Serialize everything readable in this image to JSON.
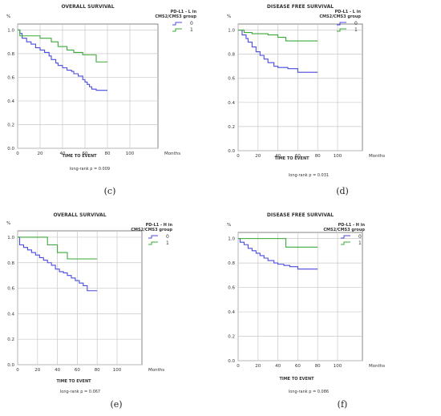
{
  "chart_data": [
    {
      "id": "top-left",
      "type": "line",
      "title": "OVERALL SURVIVAL",
      "ylabel": "%",
      "xlabel": "TIME TO EVENT",
      "xunit": "Months",
      "xticks": [
        0,
        20,
        40,
        60,
        80,
        100
      ],
      "yticks": [
        0.0,
        0.2,
        0.4,
        0.6,
        0.8,
        1.0
      ],
      "xlim": [
        0,
        100
      ],
      "ylim": [
        0,
        1.05
      ],
      "legend_title": [
        "PD-L1 - L in",
        "CMS2/CMS3 group"
      ],
      "note": "long-rank p = 0.009",
      "caption": "",
      "series": [
        {
          "name": "0",
          "color": "#4a4adf",
          "x": [
            0,
            2,
            4,
            8,
            12,
            16,
            20,
            24,
            28,
            30,
            34,
            36,
            40,
            44,
            48,
            50,
            54,
            58,
            60,
            62,
            64,
            66,
            70,
            80
          ],
          "y": [
            1.0,
            0.97,
            0.93,
            0.9,
            0.88,
            0.85,
            0.83,
            0.81,
            0.78,
            0.75,
            0.72,
            0.7,
            0.68,
            0.66,
            0.65,
            0.63,
            0.61,
            0.58,
            0.56,
            0.54,
            0.52,
            0.5,
            0.49,
            0.49
          ]
        },
        {
          "name": "1",
          "color": "#3aaa3a",
          "x": [
            0,
            2,
            20,
            30,
            36,
            44,
            50,
            58,
            70,
            80
          ],
          "y": [
            1.0,
            0.95,
            0.93,
            0.9,
            0.86,
            0.83,
            0.81,
            0.79,
            0.73,
            0.73
          ]
        }
      ]
    },
    {
      "id": "top-right",
      "type": "line",
      "title": "DISEASE FREE SURVIVAL",
      "ylabel": "%",
      "xlabel": "TIME TO EVENT",
      "xunit": "Months",
      "xticks": [
        0,
        20,
        40,
        60,
        80,
        100
      ],
      "yticks": [
        0.0,
        0.2,
        0.4,
        0.6,
        0.8,
        1.0
      ],
      "xlim": [
        0,
        100
      ],
      "ylim": [
        0,
        1.05
      ],
      "legend_title": [
        "PD-L1 - L in",
        "CMS2/CMS3 group"
      ],
      "note": "long-rank p = 0.031",
      "caption": "",
      "series": [
        {
          "name": "0",
          "color": "#4a4adf",
          "x": [
            0,
            4,
            8,
            10,
            14,
            18,
            22,
            26,
            30,
            36,
            40,
            50,
            60,
            80
          ],
          "y": [
            1.0,
            0.96,
            0.93,
            0.9,
            0.86,
            0.82,
            0.79,
            0.76,
            0.73,
            0.7,
            0.69,
            0.68,
            0.65,
            0.65
          ]
        },
        {
          "name": "1",
          "color": "#3aaa3a",
          "x": [
            0,
            6,
            14,
            30,
            40,
            48,
            60,
            80
          ],
          "y": [
            1.0,
            0.98,
            0.97,
            0.96,
            0.94,
            0.91,
            0.91,
            0.91
          ]
        }
      ]
    },
    {
      "id": "bottom-left",
      "type": "line",
      "title": "OVERALL SURVIVAL",
      "ylabel": "%",
      "xlabel": "TIME TO EVENT",
      "xunit": "Months",
      "xticks": [
        0,
        20,
        40,
        60,
        80,
        100
      ],
      "yticks": [
        0.0,
        0.2,
        0.4,
        0.6,
        0.8,
        1.0
      ],
      "xlim": [
        0,
        100
      ],
      "ylim": [
        0,
        1.05
      ],
      "legend_title": [
        "PD-L1 - H in",
        "CMS2/CMS3 group"
      ],
      "note": "long-rank p = 0.067",
      "caption": "(e)",
      "series": [
        {
          "name": "0",
          "color": "#4a4adf",
          "x": [
            0,
            2,
            6,
            10,
            14,
            18,
            22,
            26,
            30,
            34,
            38,
            42,
            46,
            50,
            54,
            58,
            62,
            66,
            70,
            80
          ],
          "y": [
            1.0,
            0.94,
            0.92,
            0.9,
            0.88,
            0.86,
            0.84,
            0.82,
            0.8,
            0.78,
            0.75,
            0.73,
            0.72,
            0.7,
            0.68,
            0.66,
            0.64,
            0.62,
            0.58,
            0.58
          ]
        },
        {
          "name": "1",
          "color": "#3aaa3a",
          "x": [
            0,
            30,
            40,
            50,
            80
          ],
          "y": [
            1.0,
            0.94,
            0.88,
            0.83,
            0.83
          ]
        }
      ]
    },
    {
      "id": "bottom-right",
      "type": "line",
      "title": "DISEASE FREE SURVIVAL",
      "ylabel": "%",
      "xlabel": "TIME TO EVENT",
      "xunit": "Months",
      "xticks": [
        0,
        20,
        40,
        60,
        80,
        100
      ],
      "yticks": [
        0.0,
        0.2,
        0.4,
        0.6,
        0.8,
        1.0
      ],
      "xlim": [
        0,
        100
      ],
      "ylim": [
        0,
        1.05
      ],
      "legend_title": [
        "PD-L1 - H in",
        "CMS2/CMS3 group"
      ],
      "note": "long-rank p = 0.086",
      "caption": "(f)",
      "series": [
        {
          "name": "0",
          "color": "#4a4adf",
          "x": [
            0,
            2,
            6,
            10,
            14,
            18,
            22,
            26,
            30,
            36,
            40,
            46,
            52,
            60,
            80
          ],
          "y": [
            1.0,
            0.97,
            0.95,
            0.92,
            0.9,
            0.88,
            0.86,
            0.84,
            0.82,
            0.8,
            0.79,
            0.78,
            0.77,
            0.75,
            0.75
          ]
        },
        {
          "name": "1",
          "color": "#3aaa3a",
          "x": [
            0,
            48,
            80
          ],
          "y": [
            1.0,
            0.93,
            0.93
          ]
        }
      ]
    }
  ],
  "captions_top": [
    "(c)",
    "(d)"
  ]
}
